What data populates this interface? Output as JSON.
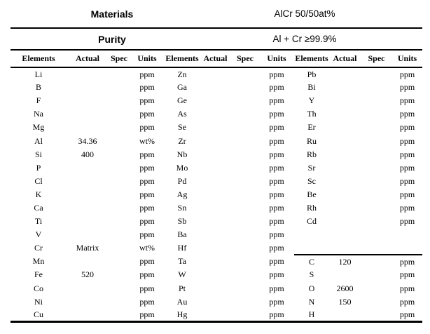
{
  "info": [
    {
      "label": "Materials",
      "value": "AlCr 50/50at%"
    },
    {
      "label": "Purity",
      "value": "Al + Cr ≥99.9%"
    }
  ],
  "table": {
    "column_headers": [
      "Elements",
      "Actual",
      "Spec",
      "Units"
    ],
    "rows": [
      [
        "Li",
        "",
        "",
        "ppm",
        "Zn",
        "",
        "",
        "ppm",
        "Pb",
        "",
        "",
        "ppm"
      ],
      [
        "B",
        "",
        "",
        "ppm",
        "Ga",
        "",
        "",
        "ppm",
        "Bi",
        "",
        "",
        "ppm"
      ],
      [
        "F",
        "",
        "",
        "ppm",
        "Ge",
        "",
        "",
        "ppm",
        "Y",
        "",
        "",
        "ppm"
      ],
      [
        "Na",
        "",
        "",
        "ppm",
        "As",
        "",
        "",
        "ppm",
        "Th",
        "",
        "",
        "ppm"
      ],
      [
        "Mg",
        "",
        "",
        "ppm",
        "Se",
        "",
        "",
        "ppm",
        "Er",
        "",
        "",
        "ppm"
      ],
      [
        "Al",
        "34.36",
        "",
        "wt%",
        "Zr",
        "",
        "",
        "ppm",
        "Ru",
        "",
        "",
        "ppm"
      ],
      [
        "Si",
        "400",
        "",
        "ppm",
        "Nb",
        "",
        "",
        "ppm",
        "Rb",
        "",
        "",
        "ppm"
      ],
      [
        "P",
        "",
        "",
        "ppm",
        "Mo",
        "",
        "",
        "ppm",
        "Sr",
        "",
        "",
        "ppm"
      ],
      [
        "Cl",
        "",
        "",
        "ppm",
        "Pd",
        "",
        "",
        "ppm",
        "Sc",
        "",
        "",
        "ppm"
      ],
      [
        "K",
        "",
        "",
        "ppm",
        "Ag",
        "",
        "",
        "ppm",
        "Be",
        "",
        "",
        "ppm"
      ],
      [
        "Ca",
        "",
        "",
        "ppm",
        "Sn",
        "",
        "",
        "ppm",
        "Rh",
        "",
        "",
        "ppm"
      ],
      [
        "Ti",
        "",
        "",
        "ppm",
        "Sb",
        "",
        "",
        "ppm",
        "Cd",
        "",
        "",
        "ppm"
      ],
      [
        "V",
        "",
        "",
        "ppm",
        "Ba",
        "",
        "",
        "ppm",
        "",
        "",
        "",
        ""
      ],
      [
        "Cr",
        "Matrix",
        "",
        "wt%",
        "Hf",
        "",
        "",
        "ppm",
        "",
        "",
        "",
        ""
      ],
      [
        "Mn",
        "",
        "",
        "ppm",
        "Ta",
        "",
        "",
        "ppm",
        "C",
        "120",
        "",
        "ppm"
      ],
      [
        "Fe",
        "520",
        "",
        "ppm",
        "W",
        "",
        "",
        "ppm",
        "S",
        "",
        "",
        "ppm"
      ],
      [
        "Co",
        "",
        "",
        "ppm",
        "Pt",
        "",
        "",
        "ppm",
        "O",
        "2600",
        "",
        "ppm"
      ],
      [
        "Ni",
        "",
        "",
        "ppm",
        "Au",
        "",
        "",
        "ppm",
        "N",
        "150",
        "",
        "ppm"
      ],
      [
        "Cu",
        "",
        "",
        "ppm",
        "Hg",
        "",
        "",
        "ppm",
        "H",
        "",
        "",
        "ppm"
      ]
    ],
    "colors": {
      "text": "#000000",
      "background": "#ffffff",
      "rule": "#000000"
    }
  }
}
